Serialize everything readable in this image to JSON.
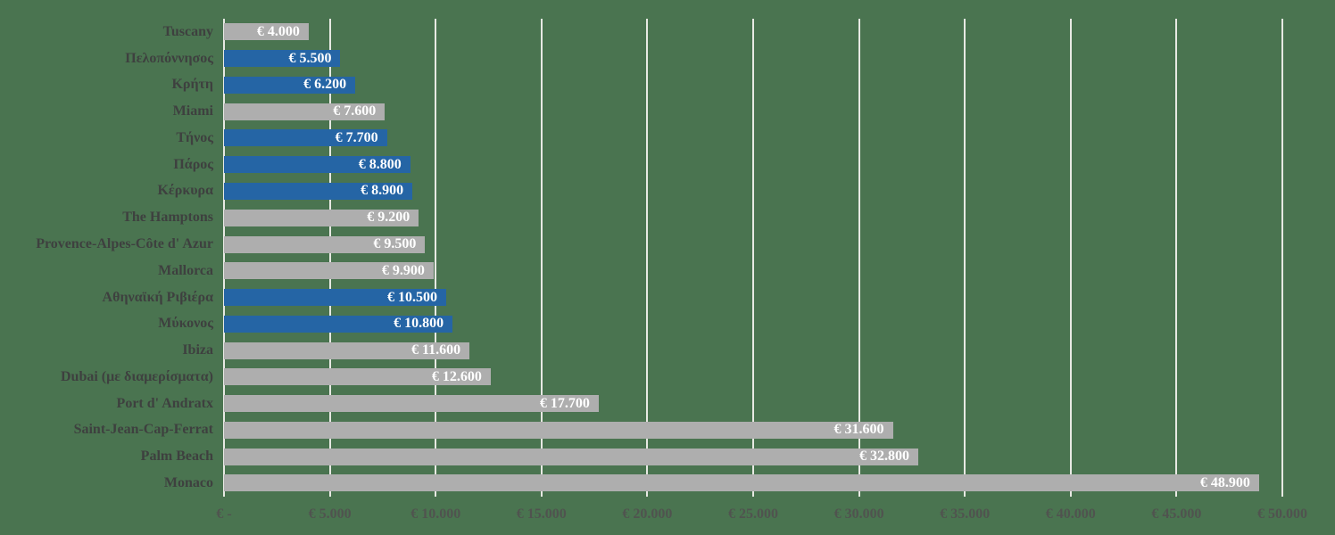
{
  "chart_data": {
    "type": "bar",
    "orientation": "horizontal",
    "title": "",
    "xlabel": "",
    "ylabel": "",
    "xlim": [
      0,
      50000
    ],
    "gridline_step": 5000,
    "grid": "vertical",
    "legend": null,
    "x_ticks": [
      "€ -",
      "€ 5.000",
      "€ 10.000",
      "€ 15.000",
      "€ 20.000",
      "€ 25.000",
      "€ 30.000",
      "€ 35.000",
      "€ 40.000",
      "€ 45.000",
      "€ 50.000"
    ],
    "bars": [
      {
        "label": "Tuscany",
        "value": 4000,
        "value_label": "€ 4.000",
        "color": "gray"
      },
      {
        "label": "Πελοπόννησος",
        "value": 5500,
        "value_label": "€ 5.500",
        "color": "blue"
      },
      {
        "label": "Κρήτη",
        "value": 6200,
        "value_label": "€ 6.200",
        "color": "blue"
      },
      {
        "label": "Miami",
        "value": 7600,
        "value_label": "€ 7.600",
        "color": "gray"
      },
      {
        "label": "Τήνος",
        "value": 7700,
        "value_label": "€ 7.700",
        "color": "blue"
      },
      {
        "label": "Πάρος",
        "value": 8800,
        "value_label": "€ 8.800",
        "color": "blue"
      },
      {
        "label": "Κέρκυρα",
        "value": 8900,
        "value_label": "€ 8.900",
        "color": "blue"
      },
      {
        "label": "The Hamptons",
        "value": 9200,
        "value_label": "€ 9.200",
        "color": "gray"
      },
      {
        "label": "Provence-Alpes-Côte d' Azur",
        "value": 9500,
        "value_label": "€ 9.500",
        "color": "gray"
      },
      {
        "label": "Mallorca",
        "value": 9900,
        "value_label": "€ 9.900",
        "color": "gray"
      },
      {
        "label": "Αθηναϊκή Ριβιέρα",
        "value": 10500,
        "value_label": "€ 10.500",
        "color": "blue"
      },
      {
        "label": "Μύκονος",
        "value": 10800,
        "value_label": "€ 10.800",
        "color": "blue"
      },
      {
        "label": "Ibiza",
        "value": 11600,
        "value_label": "€ 11.600",
        "color": "gray"
      },
      {
        "label": "Dubai (με διαμερίσματα)",
        "value": 12600,
        "value_label": "€ 12.600",
        "color": "gray"
      },
      {
        "label": "Port d' Andratx",
        "value": 17700,
        "value_label": "€ 17.700",
        "color": "gray"
      },
      {
        "label": "Saint-Jean-Cap-Ferrat",
        "value": 31600,
        "value_label": "€ 31.600",
        "color": "gray"
      },
      {
        "label": "Palm Beach",
        "value": 32800,
        "value_label": "€ 32.800",
        "color": "gray"
      },
      {
        "label": "Monaco",
        "value": 48900,
        "value_label": "€ 48.900",
        "color": "gray"
      }
    ],
    "colors": {
      "blue": "#2565a5",
      "gray": "#aeaeae",
      "background": "#4a7450",
      "gridline": "#e7e9e3",
      "category_label": "#3e403f",
      "axis_label": "#50534f",
      "value_label": "#ffffff"
    }
  }
}
